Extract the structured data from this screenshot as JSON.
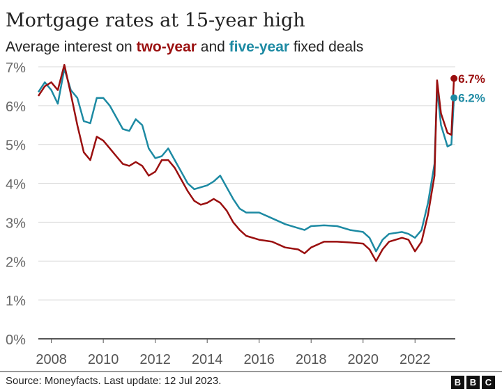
{
  "chart_data": {
    "type": "line",
    "title": "Mortgage rates at 15-year high",
    "subtitle": {
      "pre": "Average interest on ",
      "two": "two-year",
      "mid": " and ",
      "five": "five-year",
      "post": " fixed deals"
    },
    "ylim": [
      0,
      7
    ],
    "xlim": [
      2007.5,
      2023.55
    ],
    "yticks": [
      0,
      1,
      2,
      3,
      4,
      5,
      6,
      7
    ],
    "ytick_labels": [
      "0%",
      "1%",
      "2%",
      "3%",
      "4%",
      "5%",
      "6%",
      "7%"
    ],
    "xticks": [
      2008,
      2010,
      2012,
      2014,
      2016,
      2018,
      2020,
      2022
    ],
    "xtick_labels": [
      "2008",
      "2010",
      "2012",
      "2014",
      "2016",
      "2018",
      "2020",
      "2022"
    ],
    "grid": true,
    "series": [
      {
        "name": "two-year",
        "color": "#9a0f0f",
        "end_label": "6.7%",
        "x": [
          2007.5,
          2007.75,
          2008.0,
          2008.25,
          2008.5,
          2008.75,
          2009.0,
          2009.25,
          2009.5,
          2009.75,
          2010.0,
          2010.25,
          2010.5,
          2010.75,
          2011.0,
          2011.25,
          2011.5,
          2011.75,
          2012.0,
          2012.25,
          2012.5,
          2012.75,
          2013.0,
          2013.25,
          2013.5,
          2013.75,
          2014.0,
          2014.25,
          2014.5,
          2014.75,
          2015.0,
          2015.25,
          2015.5,
          2016.0,
          2016.5,
          2017.0,
          2017.5,
          2017.75,
          2018.0,
          2018.5,
          2019.0,
          2019.5,
          2020.0,
          2020.25,
          2020.5,
          2020.75,
          2021.0,
          2021.5,
          2021.75,
          2022.0,
          2022.25,
          2022.5,
          2022.75,
          2022.85,
          2023.0,
          2023.25,
          2023.4,
          2023.5
        ],
        "y": [
          6.25,
          6.5,
          6.6,
          6.4,
          7.05,
          6.3,
          5.5,
          4.8,
          4.6,
          5.2,
          5.1,
          4.9,
          4.7,
          4.5,
          4.45,
          4.55,
          4.45,
          4.2,
          4.3,
          4.6,
          4.6,
          4.4,
          4.1,
          3.8,
          3.55,
          3.45,
          3.5,
          3.6,
          3.5,
          3.3,
          3.0,
          2.8,
          2.65,
          2.55,
          2.5,
          2.35,
          2.3,
          2.2,
          2.35,
          2.5,
          2.5,
          2.48,
          2.45,
          2.3,
          2.0,
          2.3,
          2.5,
          2.6,
          2.55,
          2.25,
          2.5,
          3.2,
          4.2,
          6.65,
          5.8,
          5.3,
          5.25,
          6.7
        ]
      },
      {
        "name": "five-year",
        "color": "#1d8aa3",
        "end_label": "6.2%",
        "x": [
          2007.5,
          2007.75,
          2008.0,
          2008.25,
          2008.5,
          2008.75,
          2009.0,
          2009.25,
          2009.5,
          2009.75,
          2010.0,
          2010.25,
          2010.5,
          2010.75,
          2011.0,
          2011.25,
          2011.5,
          2011.75,
          2012.0,
          2012.25,
          2012.5,
          2012.75,
          2013.0,
          2013.25,
          2013.5,
          2013.75,
          2014.0,
          2014.25,
          2014.5,
          2014.75,
          2015.0,
          2015.25,
          2015.5,
          2016.0,
          2016.5,
          2017.0,
          2017.5,
          2017.75,
          2018.0,
          2018.5,
          2019.0,
          2019.5,
          2020.0,
          2020.25,
          2020.5,
          2020.75,
          2021.0,
          2021.5,
          2021.75,
          2022.0,
          2022.25,
          2022.5,
          2022.75,
          2022.85,
          2023.0,
          2023.25,
          2023.4,
          2023.5
        ],
        "y": [
          6.35,
          6.6,
          6.4,
          6.05,
          6.95,
          6.4,
          6.2,
          5.6,
          5.55,
          6.2,
          6.2,
          6.0,
          5.7,
          5.4,
          5.35,
          5.65,
          5.5,
          4.9,
          4.65,
          4.7,
          4.9,
          4.6,
          4.3,
          4.0,
          3.85,
          3.9,
          3.95,
          4.05,
          4.2,
          3.9,
          3.6,
          3.35,
          3.25,
          3.25,
          3.1,
          2.95,
          2.85,
          2.8,
          2.9,
          2.92,
          2.9,
          2.8,
          2.75,
          2.6,
          2.25,
          2.55,
          2.7,
          2.75,
          2.7,
          2.6,
          2.8,
          3.5,
          4.5,
          6.45,
          5.5,
          4.95,
          5.0,
          6.2
        ]
      }
    ]
  },
  "footer": {
    "source": "Source: Moneyfacts. Last update: 12 Jul 2023.",
    "logo": [
      "B",
      "B",
      "C"
    ]
  }
}
